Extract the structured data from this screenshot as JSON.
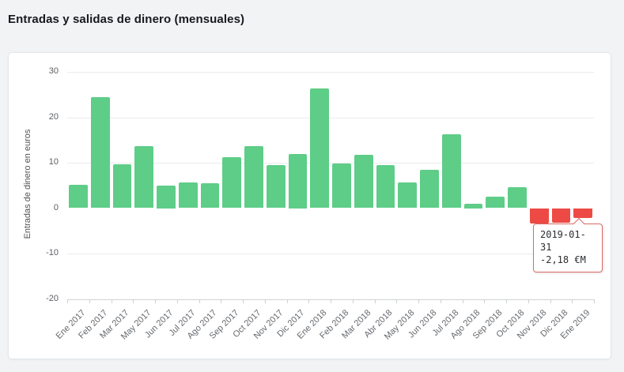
{
  "page": {
    "title": "Entradas y salidas de dinero (mensuales)",
    "background_color": "#f1f3f4",
    "card_color": "#ffffff"
  },
  "chart_data": {
    "type": "bar",
    "title": "Entradas y salidas de dinero (mensuales)",
    "xlabel": "",
    "ylabel": "Entradas de dinero en euros",
    "ylim": [
      -20,
      30
    ],
    "yticks": [
      30,
      20,
      10,
      0,
      -10,
      -20
    ],
    "grid": true,
    "legend": false,
    "categories": [
      "Ene 2017",
      "Feb 2017",
      "Mar 2017",
      "May 2017",
      "Jun 2017",
      "Jul 2017",
      "Ago 2017",
      "Sep 2017",
      "Oct 2017",
      "Nov 2017",
      "Dic 2017",
      "Ene 2018",
      "Feb 2018",
      "Mar 2018",
      "Abr 2018",
      "May 2018",
      "Jun 2018",
      "Jul 2018",
      "Ago 2018",
      "Sep 2018",
      "Oct 2018",
      "Nov 2018",
      "Dic 2018",
      "Ene 2019"
    ],
    "values": [
      5.2,
      24.4,
      9.6,
      13.7,
      5.0,
      5.7,
      5.4,
      11.2,
      13.7,
      9.4,
      12.0,
      26.4,
      9.9,
      11.8,
      9.5,
      5.7,
      8.4,
      16.3,
      1.0,
      2.5,
      4.6,
      -3.4,
      -3.2,
      -2.18
    ],
    "units": "€M",
    "positive_color": "#5ecd87",
    "negative_color": "#ed4a45"
  },
  "tooltip": {
    "date": "2019-01-31",
    "value": "-2,18 €M",
    "target_category": "Ene 2019",
    "border_color": "#dd6a63"
  }
}
